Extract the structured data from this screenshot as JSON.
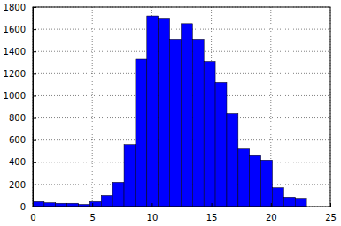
{
  "chart_data": {
    "type": "histogram",
    "bins": [
      0,
      0.958,
      1.917,
      2.875,
      3.833,
      4.792,
      5.75,
      6.708,
      7.667,
      8.625,
      9.583,
      10.542,
      11.5,
      12.458,
      13.417,
      14.375,
      15.333,
      16.292,
      17.25,
      18.208,
      19.167,
      20.125,
      21.083,
      22.042,
      23
    ],
    "values": [
      45,
      35,
      30,
      30,
      20,
      45,
      100,
      220,
      560,
      1330,
      1720,
      1700,
      1510,
      1650,
      1510,
      1310,
      1120,
      840,
      520,
      460,
      420,
      170,
      85,
      75
    ],
    "color": "#0000ff",
    "xlim": [
      0,
      25
    ],
    "ylim": [
      0,
      1800
    ],
    "xticks": [
      0,
      5,
      10,
      15,
      20,
      25
    ],
    "yticks": [
      0,
      200,
      400,
      600,
      800,
      1000,
      1200,
      1400,
      1600,
      1800
    ],
    "grid": true
  }
}
